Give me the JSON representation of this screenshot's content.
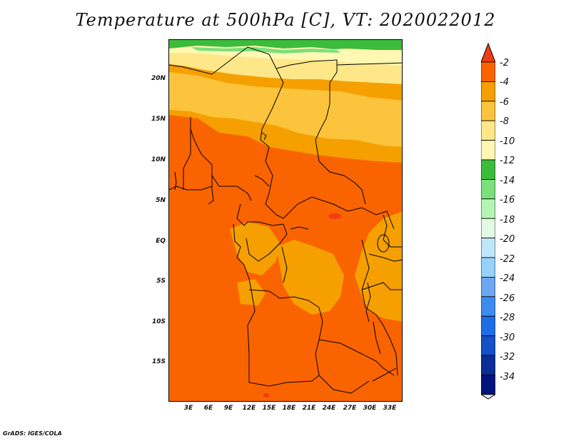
{
  "title": "Temperature at 500hPa [C], VT: 2020022012",
  "credit": "GrADS: IGES/COLA",
  "map": {
    "lat_labels": [
      "20N",
      "15N",
      "10N",
      "5N",
      "EQ",
      "5S",
      "10S",
      "15S"
    ],
    "lon_labels": [
      "3E",
      "6E",
      "9E",
      "12E",
      "15E",
      "18E",
      "21E",
      "24E",
      "27E",
      "30E",
      "33E"
    ],
    "field_colors": {
      "ocean_warm": "#fa6400",
      "mid": "#f5a000",
      "light": "#fbc43c",
      "pale": "#fee789",
      "very_pale": "#fff7b2",
      "green": "#3cbc3c",
      "green_light": "#7be07b",
      "hot_spot": "#f03c14"
    }
  },
  "colorbar": {
    "labels": [
      "-2",
      "-4",
      "-6",
      "-8",
      "-10",
      "-12",
      "-14",
      "-16",
      "-18",
      "-20",
      "-22",
      "-24",
      "-26",
      "-28",
      "-30",
      "-32",
      "-34"
    ],
    "colors": [
      "#f03c14",
      "#fa6400",
      "#f5a000",
      "#fbc43c",
      "#fee789",
      "#fff7b2",
      "#3cbc3c",
      "#7be07b",
      "#b4f4b4",
      "#e1fae1",
      "#bfe6fa",
      "#96d2fa",
      "#6ea6f0",
      "#3c8cf0",
      "#1e6ee6",
      "#1450c8",
      "#0a2d96",
      "#00147a",
      "#e6e6fa"
    ]
  }
}
